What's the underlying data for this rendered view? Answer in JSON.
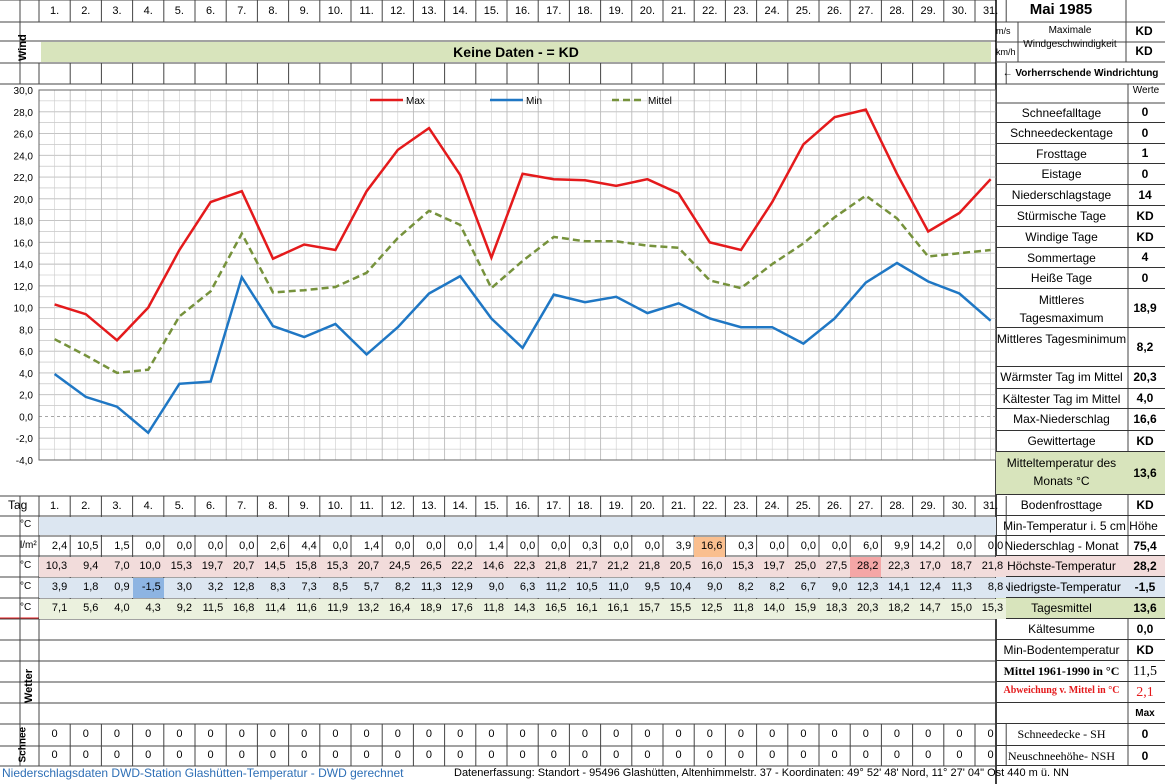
{
  "header": {
    "title": "Mai 1985",
    "wind_label": "Wind",
    "no_data": "Keine Daten -  = KD",
    "unit_ms": "m/s",
    "unit_kmh": "km/h",
    "max_wind_label": "Maximale Windgeschwindigkeit",
    "max_wind_ms": "KD",
    "max_wind_kmh": "KD",
    "prevailing_dir": "← Vorherrschende Windrichtung"
  },
  "days": [
    "1.",
    "2.",
    "3.",
    "4.",
    "5.",
    "6.",
    "7.",
    "8.",
    "9.",
    "10.",
    "11.",
    "12.",
    "13.",
    "14.",
    "15.",
    "16.",
    "17.",
    "18.",
    "19.",
    "20.",
    "21.",
    "22.",
    "23.",
    "24.",
    "25.",
    "26.",
    "27.",
    "28.",
    "29.",
    "30.",
    "31."
  ],
  "tag_label": "Tag",
  "chart_data": {
    "type": "line",
    "x": [
      "1.",
      "2.",
      "3.",
      "4.",
      "5.",
      "6.",
      "7.",
      "8.",
      "9.",
      "10.",
      "11.",
      "12.",
      "13.",
      "14.",
      "15.",
      "16.",
      "17.",
      "18.",
      "19.",
      "20.",
      "21.",
      "22.",
      "23.",
      "24.",
      "25.",
      "26.",
      "27.",
      "28.",
      "29.",
      "30.",
      "31."
    ],
    "series": [
      {
        "name": "Max",
        "color": "#e41a1c",
        "style": "solid",
        "values": [
          10.3,
          9.4,
          7.0,
          10.0,
          15.3,
          19.7,
          20.7,
          14.5,
          15.8,
          15.3,
          20.7,
          24.5,
          26.5,
          22.2,
          14.6,
          22.3,
          21.8,
          21.7,
          21.2,
          21.8,
          20.5,
          16.0,
          15.3,
          19.7,
          25.0,
          27.5,
          28.2,
          22.3,
          17.0,
          18.7,
          21.8
        ]
      },
      {
        "name": "Min",
        "color": "#1f77c4",
        "style": "solid",
        "values": [
          3.9,
          1.8,
          0.9,
          -1.5,
          3.0,
          3.2,
          12.8,
          8.3,
          7.3,
          8.5,
          5.7,
          8.2,
          11.3,
          12.9,
          9.0,
          6.3,
          11.2,
          10.5,
          11.0,
          9.5,
          10.4,
          9.0,
          8.2,
          8.2,
          6.7,
          9.0,
          12.3,
          14.1,
          12.4,
          11.3,
          8.8
        ]
      },
      {
        "name": "Mittel",
        "color": "#76923c",
        "style": "dashed",
        "values": [
          7.1,
          5.6,
          4.0,
          4.3,
          9.2,
          11.5,
          16.8,
          11.4,
          11.6,
          11.9,
          13.2,
          16.4,
          18.9,
          17.6,
          11.8,
          14.3,
          16.5,
          16.1,
          16.1,
          15.7,
          15.5,
          12.5,
          11.8,
          14.0,
          15.9,
          18.3,
          20.3,
          18.2,
          14.7,
          15.0,
          15.3
        ]
      }
    ],
    "yticks": [
      "30,0",
      "28,0",
      "26,0",
      "24,0",
      "22,0",
      "20,0",
      "18,0",
      "16,0",
      "14,0",
      "12,0",
      "10,0",
      "8,0",
      "6,0",
      "4,0",
      "2,0",
      "0,0",
      "-2,0",
      "-4,0"
    ],
    "ylim": [
      -4,
      30
    ],
    "grid": true,
    "legend": "top-center"
  },
  "rows": {
    "bodenmin_unit": "°C",
    "precip_unit": "l/m²",
    "precip": [
      "2,4",
      "10,5",
      "1,5",
      "0,0",
      "0,0",
      "0,0",
      "0,0",
      "2,6",
      "4,4",
      "0,0",
      "1,4",
      "0,0",
      "0,0",
      "0,0",
      "1,4",
      "0,0",
      "0,0",
      "0,3",
      "0,0",
      "0,0",
      "3,9",
      "16,6",
      "0,3",
      "0,0",
      "0,0",
      "0,0",
      "6,0",
      "9,9",
      "14,2",
      "0,0",
      "0,0"
    ],
    "max_unit": "°C",
    "max": [
      "10,3",
      "9,4",
      "7,0",
      "10,0",
      "15,3",
      "19,7",
      "20,7",
      "14,5",
      "15,8",
      "15,3",
      "20,7",
      "24,5",
      "26,5",
      "22,2",
      "14,6",
      "22,3",
      "21,8",
      "21,7",
      "21,2",
      "21,8",
      "20,5",
      "16,0",
      "15,3",
      "19,7",
      "25,0",
      "27,5",
      "28,2",
      "22,3",
      "17,0",
      "18,7",
      "21,8"
    ],
    "min_unit": "°C",
    "min": [
      "3,9",
      "1,8",
      "0,9",
      "-1,5",
      "3,0",
      "3,2",
      "12,8",
      "8,3",
      "7,3",
      "8,5",
      "5,7",
      "8,2",
      "11,3",
      "12,9",
      "9,0",
      "6,3",
      "11,2",
      "10,5",
      "11,0",
      "9,5",
      "10,4",
      "9,0",
      "8,2",
      "8,2",
      "6,7",
      "9,0",
      "12,3",
      "14,1",
      "12,4",
      "11,3",
      "8,8"
    ],
    "mean_unit": "°C",
    "mean": [
      "7,1",
      "5,6",
      "4,0",
      "4,3",
      "9,2",
      "11,5",
      "16,8",
      "11,4",
      "11,6",
      "11,9",
      "13,2",
      "16,4",
      "18,9",
      "17,6",
      "11,8",
      "14,3",
      "16,5",
      "16,1",
      "16,1",
      "15,7",
      "15,5",
      "12,5",
      "11,8",
      "14,0",
      "15,9",
      "18,3",
      "20,3",
      "18,2",
      "14,7",
      "15,0",
      "15,3"
    ],
    "wetter_label": "Wetter",
    "schnee_label": "Schnee",
    "sh": [
      "0",
      "0",
      "0",
      "0",
      "0",
      "0",
      "0",
      "0",
      "0",
      "0",
      "0",
      "0",
      "0",
      "0",
      "0",
      "0",
      "0",
      "0",
      "0",
      "0",
      "0",
      "0",
      "0",
      "0",
      "0",
      "0",
      "0",
      "0",
      "0",
      "0",
      "0"
    ],
    "nsh": [
      "0",
      "0",
      "0",
      "0",
      "0",
      "0",
      "0",
      "0",
      "0",
      "0",
      "0",
      "0",
      "0",
      "0",
      "0",
      "0",
      "0",
      "0",
      "0",
      "0",
      "0",
      "0",
      "0",
      "0",
      "0",
      "0",
      "0",
      "0",
      "0",
      "0",
      "0"
    ]
  },
  "stats": {
    "werte": "Werte",
    "items": [
      {
        "label": "Schneefalltage",
        "value": "0"
      },
      {
        "label": "Schneedeckentage",
        "value": "0"
      },
      {
        "label": "Frosttage",
        "value": "1"
      },
      {
        "label": "Eistage",
        "value": "0"
      },
      {
        "label": "Niederschlagstage",
        "value": "14"
      },
      {
        "label": "Stürmische Tage",
        "value": "KD"
      },
      {
        "label": "Windige Tage",
        "value": "KD"
      },
      {
        "label": "Sommertage",
        "value": "4"
      },
      {
        "label": "Heiße Tage",
        "value": "0"
      },
      {
        "label": "Mittleres Tagesmaximum",
        "value": "18,9"
      },
      {
        "label": "Mittleres Tagesminimum",
        "value": "8,2"
      },
      {
        "label": "Wärmster Tag im Mittel",
        "value": "20,3"
      },
      {
        "label": "Kältester Tag im Mittel",
        "value": "4,0"
      },
      {
        "label": "Max-Niederschlag",
        "value": "16,6"
      },
      {
        "label": "Gewittertage",
        "value": "KD"
      },
      {
        "label": "Mitteltemperatur des Monats °C",
        "value": "13,6"
      },
      {
        "label": "Bodenfrosttage",
        "value": "KD"
      }
    ],
    "bottom": [
      {
        "label": "Min-Temperatur i. 5 cm Höhe",
        "value": ""
      },
      {
        "label": "Niederschlag - Monat",
        "value": "75,4"
      },
      {
        "label": "Höchste-Temperatur",
        "value": "28,2"
      },
      {
        "label": "Niedrigste-Temperatur",
        "value": "-1,5"
      },
      {
        "label": "Tagesmittel",
        "value": "13,6"
      },
      {
        "label": "Kältesumme",
        "value": "0,0"
      },
      {
        "label": "Min-Bodentemperatur",
        "value": "KD"
      },
      {
        "label": "Mittel 1961-1990 in °C",
        "value": "11,5"
      },
      {
        "label": "Abweichung v. Mittel in °C",
        "value": "2,1"
      },
      {
        "label": "",
        "value": "Max"
      },
      {
        "label": "Schneedecke -   SH",
        "value": "0"
      },
      {
        "label": "Neuschneehöhe- NSH",
        "value": "0"
      }
    ]
  },
  "footer": {
    "left": "Niederschlagsdaten DWD-Station Glashütten-Temperatur -  DWD gerechnet",
    "right": "Datenerfassung: Standort -  95496 Glashütten, Altenhimmelstr. 37 - Koordinaten:  49° 52' 48' Nord,   11° 27' 04\" Ost   440 m ü. NN"
  }
}
